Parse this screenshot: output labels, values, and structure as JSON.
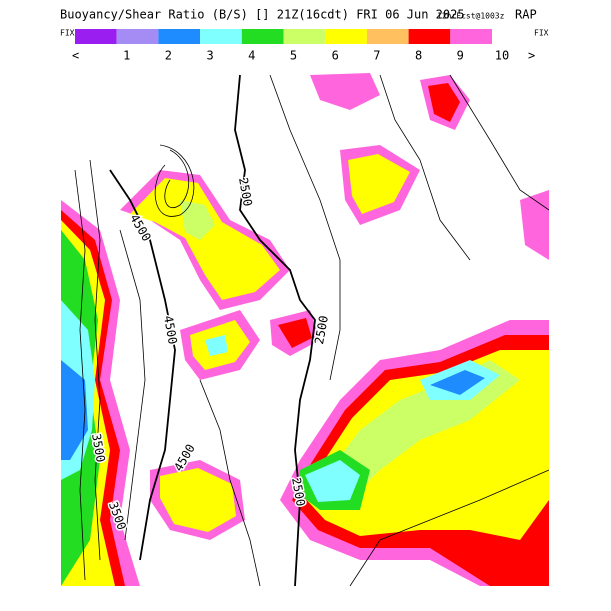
{
  "header": {
    "title": "Buoyancy/Shear Ratio (B/S) [] 21Z(16cdt) FRI 06 Jun 2025",
    "forecast": "12hrFcst@1003z",
    "model": "RAP"
  },
  "legend": {
    "left_label": "FIX",
    "right_label": "FIX",
    "less": "<",
    "greater": ">",
    "levels": [
      "1",
      "2",
      "3",
      "4",
      "5",
      "6",
      "7",
      "8",
      "9",
      "10"
    ]
  },
  "map": {
    "contour_labels": [
      "2500",
      "4500",
      "4500",
      "2500",
      "4500",
      "2500",
      "3500",
      "3500"
    ]
  }
}
